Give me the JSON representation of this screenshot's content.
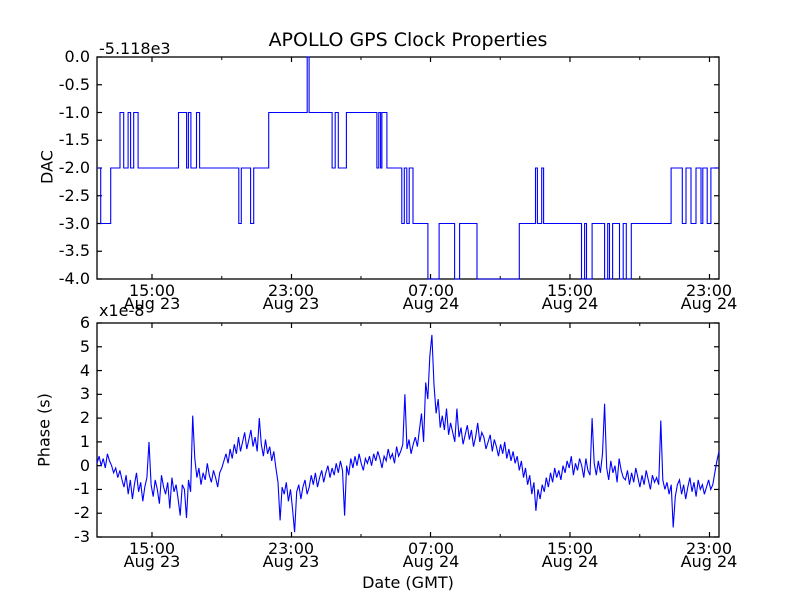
{
  "figure": {
    "title": "APOLLO GPS Clock Properties",
    "xlabel": "Date (GMT)",
    "line_color": "#0000ff",
    "axis_color": "#000000",
    "background": "#ffffff"
  },
  "chart_data": [
    {
      "type": "line",
      "name": "dac-subplot",
      "ylabel": "DAC",
      "offset_label": "-5.118e3",
      "ylim": [
        -4.0,
        0.0
      ],
      "grid": false,
      "legend": "none",
      "ytick_values": [
        0,
        -0.5,
        -1,
        -1.5,
        -2,
        -2.5,
        -3,
        -3.5,
        -4
      ],
      "ytick_labels": [
        "0.0",
        "-0.5",
        "-1.0",
        "-1.5",
        "-2.0",
        "-2.5",
        "-3.0",
        "-3.5",
        "-4.0"
      ],
      "xtick_f": [
        0.0884,
        0.3127,
        0.5362,
        0.7604,
        0.9847
      ],
      "xtick_time": [
        "15:00",
        "23:00",
        "07:00",
        "15:00",
        "23:00"
      ],
      "xtick_date": [
        "Aug 23",
        "Aug 23",
        "Aug 24",
        "Aug 24",
        "Aug 24"
      ],
      "minor_xtick_f": [
        0.2006,
        0.4244,
        0.6483,
        0.8726
      ],
      "step_points": [
        [
          0.0,
          -2
        ],
        [
          0.006,
          -3
        ],
        [
          0.022,
          -2
        ],
        [
          0.037,
          -1
        ],
        [
          0.043,
          -2
        ],
        [
          0.05,
          -1
        ],
        [
          0.054,
          -2
        ],
        [
          0.059,
          -1
        ],
        [
          0.066,
          -2
        ],
        [
          0.131,
          -1
        ],
        [
          0.144,
          -2
        ],
        [
          0.147,
          -1
        ],
        [
          0.151,
          -2
        ],
        [
          0.16,
          -1
        ],
        [
          0.165,
          -2
        ],
        [
          0.228,
          -3
        ],
        [
          0.232,
          -2
        ],
        [
          0.247,
          -3
        ],
        [
          0.252,
          -2
        ],
        [
          0.276,
          -1
        ],
        [
          0.338,
          0
        ],
        [
          0.341,
          -1
        ],
        [
          0.378,
          -2
        ],
        [
          0.383,
          -1
        ],
        [
          0.388,
          -2
        ],
        [
          0.401,
          -1
        ],
        [
          0.45,
          -2
        ],
        [
          0.453,
          -1
        ],
        [
          0.456,
          -2
        ],
        [
          0.458,
          -1
        ],
        [
          0.466,
          -2
        ],
        [
          0.49,
          -3
        ],
        [
          0.494,
          -2
        ],
        [
          0.498,
          -3
        ],
        [
          0.502,
          -2
        ],
        [
          0.508,
          -3
        ],
        [
          0.532,
          -4
        ],
        [
          0.55,
          -3
        ],
        [
          0.575,
          -4
        ],
        [
          0.583,
          -3
        ],
        [
          0.611,
          -4
        ],
        [
          0.679,
          -3
        ],
        [
          0.705,
          -2
        ],
        [
          0.708,
          -3
        ],
        [
          0.715,
          -2
        ],
        [
          0.718,
          -3
        ],
        [
          0.779,
          -4
        ],
        [
          0.784,
          -3
        ],
        [
          0.787,
          -4
        ],
        [
          0.796,
          -3
        ],
        [
          0.816,
          -4
        ],
        [
          0.821,
          -3
        ],
        [
          0.824,
          -4
        ],
        [
          0.829,
          -3
        ],
        [
          0.84,
          -4
        ],
        [
          0.846,
          -3
        ],
        [
          0.851,
          -4
        ],
        [
          0.859,
          -3
        ],
        [
          0.923,
          -2
        ],
        [
          0.941,
          -3
        ],
        [
          0.947,
          -2
        ],
        [
          0.955,
          -3
        ],
        [
          0.963,
          -2
        ],
        [
          0.971,
          -3
        ],
        [
          0.974,
          -2
        ],
        [
          0.981,
          -3
        ],
        [
          0.987,
          -2
        ]
      ]
    },
    {
      "type": "line",
      "name": "phase-subplot",
      "ylabel": "Phase (s)",
      "multiplier_label": "x1e-8",
      "ylim": [
        -3,
        6
      ],
      "grid": false,
      "legend": "none",
      "ytick_values": [
        6,
        5,
        4,
        3,
        2,
        1,
        0,
        -1,
        -2,
        -3
      ],
      "ytick_labels": [
        "6",
        "5",
        "4",
        "3",
        "2",
        "1",
        "0",
        "-1",
        "-2",
        "-3"
      ],
      "xtick_f": [
        0.0884,
        0.3127,
        0.5362,
        0.7604,
        0.9847
      ],
      "xtick_time": [
        "15:00",
        "23:00",
        "07:00",
        "15:00",
        "23:00"
      ],
      "xtick_date": [
        "Aug 23",
        "Aug 23",
        "Aug 24",
        "Aug 24",
        "Aug 24"
      ],
      "minor_xtick_f": [
        0.2006,
        0.4244,
        0.6483,
        0.8726
      ],
      "values": [
        0.1,
        0.4,
        0.0,
        0.3,
        -0.1,
        0.5,
        0.2,
        0.0,
        -0.3,
        -0.1,
        -0.5,
        -0.2,
        -0.6,
        -0.9,
        -0.4,
        -1.2,
        -0.6,
        -1.4,
        -0.8,
        -0.3,
        -1.1,
        -0.7,
        -1.5,
        -0.9,
        -0.5,
        1.0,
        -0.8,
        -1.3,
        -0.6,
        -1.0,
        -1.6,
        -0.4,
        -0.9,
        -1.2,
        -0.7,
        -1.8,
        -0.5,
        -1.1,
        -0.8,
        -1.4,
        -2.1,
        -0.8,
        -1.0,
        -2.2,
        -0.6,
        -1.1,
        2.1,
        0.3,
        -0.5,
        -0.1,
        -0.8,
        -0.3,
        -0.6,
        0.1,
        -0.4,
        -0.7,
        -0.2,
        -0.5,
        -0.9,
        -0.3,
        -0.1,
        0.2,
        0.5,
        0.1,
        0.7,
        0.3,
        0.9,
        0.5,
        1.2,
        0.6,
        1.0,
        1.4,
        0.7,
        1.1,
        1.5,
        0.8,
        1.2,
        0.6,
        2.0,
        0.9,
        0.4,
        1.1,
        0.5,
        0.8,
        0.2,
        0.6,
        -0.1,
        -0.7,
        -2.3,
        -0.9,
        -1.2,
        -0.7,
        -1.5,
        -1.0,
        -1.8,
        -2.8,
        -1.1,
        -0.8,
        -1.4,
        -0.9,
        -0.6,
        -1.2,
        -0.9,
        -0.4,
        -0.8,
        -0.3,
        -0.9,
        -0.5,
        -0.2,
        -0.7,
        -0.3,
        0.0,
        -0.5,
        -0.1,
        -0.4,
        0.1,
        -0.3,
        0.2,
        -0.2,
        -2.1,
        0.0,
        -0.4,
        0.3,
        -0.1,
        0.4,
        0.0,
        0.5,
        0.1,
        -0.2,
        0.3,
        0.1,
        0.4,
        0.0,
        0.5,
        0.2,
        0.6,
        0.3,
        -0.1,
        0.4,
        0.2,
        0.7,
        0.3,
        0.5,
        0.1,
        0.8,
        0.4,
        0.6,
        0.9,
        3.0,
        0.7,
        1.1,
        0.5,
        0.9,
        1.2,
        0.8,
        1.5,
        2.2,
        1.0,
        3.5,
        2.8,
        4.6,
        5.5,
        3.4,
        2.2,
        2.8,
        1.6,
        2.1,
        1.5,
        2.4,
        1.3,
        1.8,
        1.4,
        1.0,
        2.4,
        1.2,
        1.6,
        0.9,
        1.3,
        1.7,
        1.1,
        1.5,
        0.8,
        1.2,
        1.8,
        1.0,
        1.4,
        1.2,
        0.7,
        1.0,
        1.3,
        0.6,
        1.1,
        0.8,
        0.4,
        0.9,
        0.5,
        1.0,
        0.3,
        0.7,
        0.2,
        0.6,
        0.1,
        0.4,
        -0.2,
        0.2,
        -0.5,
        -0.1,
        -0.8,
        -0.4,
        -1.2,
        -0.7,
        -1.9,
        -1.0,
        -1.4,
        -0.8,
        -1.1,
        -0.5,
        -0.9,
        -0.3,
        -0.7,
        -0.1,
        -0.5,
        -0.2,
        -0.6,
        0.0,
        -0.3,
        0.2,
        -0.1,
        0.4,
        -0.4,
        0.1,
        -0.2,
        0.3,
        0.0,
        -0.5,
        0.3,
        -0.2,
        -0.4,
        2.0,
        0.1,
        -0.4,
        0.2,
        -0.3,
        0.5,
        2.6,
        -0.1,
        -0.6,
        0.2,
        -0.3,
        0.0,
        -0.7,
        0.3,
        -0.2,
        -0.5,
        -0.6,
        -0.2,
        -0.8,
        -0.3,
        -0.7,
        -0.1,
        -0.5,
        -0.9,
        -0.4,
        -0.8,
        -0.2,
        -0.6,
        -1.0,
        -0.4,
        -0.7,
        -0.5,
        -0.8,
        1.9,
        -0.6,
        -1.0,
        -0.7,
        -1.2,
        -0.8,
        -2.6,
        -1.3,
        -0.8,
        -0.6,
        -1.2,
        -0.8,
        -1.4,
        -0.9,
        -0.5,
        -1.1,
        -0.7,
        -1.3,
        -0.6,
        -1.0,
        -0.8,
        -1.2,
        -0.9,
        -0.6,
        -1.0,
        -0.8,
        -0.3,
        0.2,
        0.6
      ]
    }
  ]
}
